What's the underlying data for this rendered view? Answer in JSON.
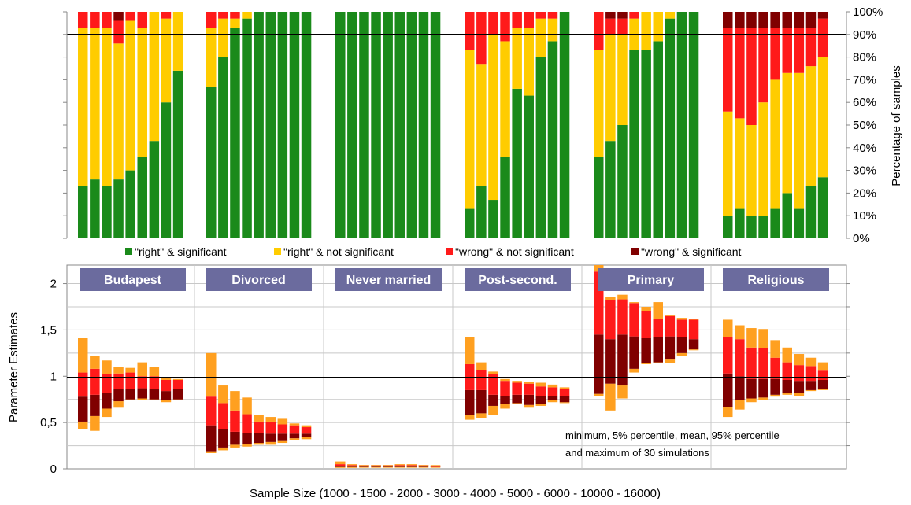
{
  "chart_data": [
    {
      "type": "stacked-bar",
      "ylabel": "Percentage of samples",
      "ylim": [
        0,
        100
      ],
      "yticks": [
        "0%",
        "10%",
        "20%",
        "30%",
        "40%",
        "50%",
        "60%",
        "70%",
        "80%",
        "90%",
        "100%"
      ],
      "reference_line": 90,
      "sample_sizes": [
        1000,
        1500,
        2000,
        3000,
        4000,
        5000,
        6000,
        10000,
        16000
      ],
      "legend": {
        "placement": "bottom",
        "entries": [
          {
            "label": "\"right\" & significant",
            "color": "#1a8a1a"
          },
          {
            "label": "\"right\" & not significant",
            "color": "#ffcc00"
          },
          {
            "label": "\"wrong\" & not significant",
            "color": "#ff1a1a"
          },
          {
            "label": "\"wrong\" & significant",
            "color": "#800000"
          }
        ]
      },
      "groups": [
        {
          "name": "Budapest",
          "right_sig": [
            23,
            26,
            23,
            26,
            30,
            36,
            43,
            60,
            74
          ],
          "right_notsig": [
            70,
            67,
            70,
            60,
            66,
            57,
            57,
            37,
            26
          ],
          "wrong_notsig": [
            7,
            7,
            7,
            10,
            4,
            7,
            0,
            3,
            0
          ],
          "wrong_sig": [
            0,
            0,
            0,
            4,
            0,
            0,
            0,
            0,
            0
          ]
        },
        {
          "name": "Divorced",
          "right_sig": [
            67,
            80,
            93,
            97,
            100,
            100,
            100,
            100,
            100
          ],
          "right_notsig": [
            26,
            17,
            4,
            3,
            0,
            0,
            0,
            0,
            0
          ],
          "wrong_notsig": [
            7,
            3,
            3,
            0,
            0,
            0,
            0,
            0,
            0
          ],
          "wrong_sig": [
            0,
            0,
            0,
            0,
            0,
            0,
            0,
            0,
            0
          ]
        },
        {
          "name": "Never married",
          "right_sig": [
            100,
            100,
            100,
            100,
            100,
            100,
            100,
            100,
            100
          ],
          "right_notsig": [
            0,
            0,
            0,
            0,
            0,
            0,
            0,
            0,
            0
          ],
          "wrong_notsig": [
            0,
            0,
            0,
            0,
            0,
            0,
            0,
            0,
            0
          ],
          "wrong_sig": [
            0,
            0,
            0,
            0,
            0,
            0,
            0,
            0,
            0
          ]
        },
        {
          "name": "Post-second.",
          "right_sig": [
            13,
            23,
            17,
            36,
            66,
            63,
            80,
            87,
            100
          ],
          "right_notsig": [
            70,
            54,
            73,
            51,
            27,
            30,
            17,
            10,
            0
          ],
          "wrong_notsig": [
            17,
            23,
            10,
            13,
            7,
            7,
            3,
            3,
            0
          ],
          "wrong_sig": [
            0,
            0,
            0,
            0,
            0,
            0,
            0,
            0,
            0
          ]
        },
        {
          "name": "Primary",
          "right_sig": [
            36,
            43,
            50,
            83,
            83,
            87,
            97,
            100,
            100
          ],
          "right_notsig": [
            47,
            47,
            40,
            14,
            17,
            13,
            3,
            0,
            0
          ],
          "wrong_notsig": [
            17,
            7,
            7,
            3,
            0,
            0,
            0,
            0,
            0
          ],
          "wrong_sig": [
            0,
            3,
            3,
            0,
            0,
            0,
            0,
            0,
            0
          ]
        },
        {
          "name": "Religious",
          "right_sig": [
            10,
            13,
            10,
            10,
            13,
            20,
            13,
            23,
            27
          ],
          "right_notsig": [
            46,
            40,
            40,
            50,
            57,
            53,
            60,
            53,
            53
          ],
          "wrong_notsig": [
            37,
            40,
            43,
            33,
            23,
            20,
            20,
            17,
            17
          ],
          "wrong_sig": [
            7,
            7,
            7,
            7,
            7,
            7,
            7,
            7,
            3
          ]
        }
      ]
    },
    {
      "type": "range-bar",
      "ylabel": "Parameter Estimates",
      "xlabel": "Sample Size (1000 - 1500 - 2000 - 3000 - 4000 - 5000 - 6000 - 10000 - 16000)",
      "ylim": [
        0,
        2.2
      ],
      "yticks": [
        {
          "value": 0,
          "label": "0"
        },
        {
          "value": 0.5,
          "label": "0,5"
        },
        {
          "value": 1,
          "label": "1"
        },
        {
          "value": 1.5,
          "label": "1,5"
        },
        {
          "value": 2,
          "label": "2"
        }
      ],
      "reference_line": 1,
      "annotation": [
        "minimum, 5% percentile, mean, 95% percentile",
        "and maximum of 30 simulations"
      ],
      "colors": {
        "outer": "#ffa020",
        "inner_upper": "#ff1a1a",
        "inner_lower": "#800000"
      },
      "label_box_color": "#6b6b9e",
      "groups": [
        {
          "name": "Budapest",
          "min": [
            0.43,
            0.41,
            0.56,
            0.66,
            0.74,
            0.74,
            0.74,
            0.72,
            0.74
          ],
          "p5": [
            0.51,
            0.57,
            0.65,
            0.73,
            0.75,
            0.76,
            0.75,
            0.74,
            0.75
          ],
          "mean": [
            0.78,
            0.8,
            0.82,
            0.86,
            0.86,
            0.87,
            0.86,
            0.84,
            0.86
          ],
          "p95": [
            1.04,
            1.08,
            1.02,
            1.03,
            1.04,
            1.0,
            1.0,
            0.96,
            0.96
          ],
          "max": [
            1.41,
            1.22,
            1.17,
            1.1,
            1.09,
            1.15,
            1.1,
            0.98,
            0.97
          ]
        },
        {
          "name": "Divorced",
          "min": [
            0.17,
            0.2,
            0.23,
            0.24,
            0.26,
            0.26,
            0.28,
            0.31,
            0.32
          ],
          "p5": [
            0.19,
            0.23,
            0.26,
            0.27,
            0.28,
            0.29,
            0.3,
            0.33,
            0.34
          ],
          "mean": [
            0.47,
            0.43,
            0.4,
            0.39,
            0.39,
            0.38,
            0.38,
            0.38,
            0.38
          ],
          "p95": [
            0.78,
            0.71,
            0.63,
            0.59,
            0.51,
            0.51,
            0.48,
            0.47,
            0.45
          ],
          "max": [
            1.25,
            0.9,
            0.84,
            0.77,
            0.58,
            0.56,
            0.54,
            0.49,
            0.47
          ]
        },
        {
          "name": "Never married",
          "min": [
            0.01,
            0.01,
            0.02,
            0.02,
            0.02,
            0.02,
            0.02,
            0.02,
            0.02
          ],
          "p5": [
            0.02,
            0.02,
            0.02,
            0.02,
            0.02,
            0.02,
            0.02,
            0.02,
            0.02
          ],
          "mean": [
            0.03,
            0.03,
            0.03,
            0.03,
            0.03,
            0.03,
            0.03,
            0.03,
            0.03
          ],
          "p95": [
            0.05,
            0.04,
            0.04,
            0.04,
            0.04,
            0.04,
            0.04,
            0.04,
            0.03
          ],
          "max": [
            0.08,
            0.05,
            0.04,
            0.04,
            0.04,
            0.05,
            0.05,
            0.04,
            0.04
          ]
        },
        {
          "name": "Post-second.",
          "min": [
            0.53,
            0.55,
            0.58,
            0.65,
            0.7,
            0.66,
            0.68,
            0.72,
            0.71
          ],
          "p5": [
            0.58,
            0.6,
            0.68,
            0.7,
            0.71,
            0.69,
            0.7,
            0.74,
            0.72
          ],
          "mean": [
            0.85,
            0.85,
            0.8,
            0.79,
            0.8,
            0.8,
            0.79,
            0.79,
            0.79
          ],
          "p95": [
            1.13,
            1.07,
            1.02,
            0.95,
            0.93,
            0.92,
            0.89,
            0.88,
            0.86
          ],
          "max": [
            1.42,
            1.15,
            1.05,
            0.97,
            0.95,
            0.94,
            0.93,
            0.91,
            0.88
          ]
        },
        {
          "name": "Primary",
          "min": [
            0.79,
            0.63,
            0.76,
            1.04,
            1.13,
            1.14,
            1.14,
            1.22,
            1.28
          ],
          "p5": [
            0.81,
            0.92,
            0.9,
            1.08,
            1.14,
            1.15,
            1.18,
            1.25,
            1.29
          ],
          "mean": [
            1.45,
            1.4,
            1.45,
            1.43,
            1.41,
            1.42,
            1.43,
            1.42,
            1.4
          ],
          "p95": [
            2.13,
            1.82,
            1.83,
            1.79,
            1.7,
            1.62,
            1.65,
            1.61,
            1.61
          ],
          "max": [
            2.2,
            1.86,
            1.88,
            1.8,
            1.75,
            1.8,
            1.66,
            1.63,
            1.62
          ]
        },
        {
          "name": "Religious",
          "min": [
            0.56,
            0.64,
            0.72,
            0.74,
            0.78,
            0.8,
            0.79,
            0.84,
            0.85
          ],
          "p5": [
            0.67,
            0.74,
            0.76,
            0.77,
            0.8,
            0.82,
            0.82,
            0.85,
            0.86
          ],
          "mean": [
            1.03,
            1.0,
            0.97,
            0.97,
            0.97,
            0.96,
            0.95,
            0.95,
            0.96
          ],
          "p95": [
            1.42,
            1.4,
            1.31,
            1.3,
            1.2,
            1.15,
            1.12,
            1.11,
            1.06
          ],
          "max": [
            1.61,
            1.55,
            1.52,
            1.51,
            1.39,
            1.31,
            1.24,
            1.2,
            1.15
          ]
        }
      ]
    }
  ]
}
